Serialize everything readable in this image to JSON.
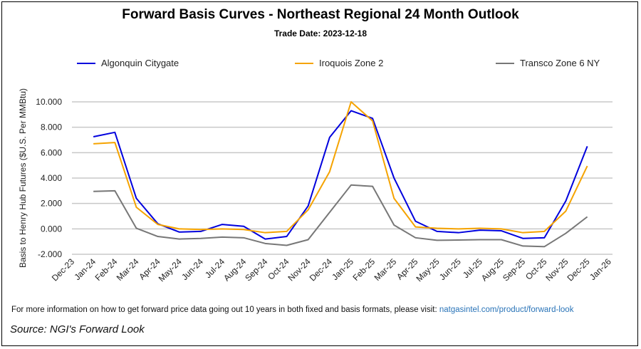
{
  "chart_data": {
    "type": "line",
    "title": "Forward Basis Curves - Northeast Regional 24 Month Outlook",
    "subtitle": "Trade Date: 2023-12-18",
    "ylabel": "Basis to Henry Hub Futures ($U.S. Per MMBtu)",
    "xlabel": "",
    "ylim": [
      -2,
      10
    ],
    "yticks": [
      "-2.000",
      "0.000",
      "2.000",
      "4.000",
      "6.000",
      "8.000",
      "10.000"
    ],
    "grid": true,
    "legend": "top",
    "xticks": [
      "Dec-23",
      "Jan-24",
      "Feb-24",
      "Mar-24",
      "Apr-24",
      "May-24",
      "Jun-24",
      "Jul-24",
      "Aug-24",
      "Sep-24",
      "Oct-24",
      "Nov-24",
      "Dec-24",
      "Jan-25",
      "Feb-25",
      "Mar-25",
      "Apr-25",
      "May-25",
      "Jun-25",
      "Jul-25",
      "Aug-25",
      "Sep-25",
      "Oct-25",
      "Nov-25",
      "Dec-25",
      "Jan-26"
    ],
    "x": [
      "Jan-24",
      "Feb-24",
      "Mar-24",
      "Apr-24",
      "May-24",
      "Jun-24",
      "Jul-24",
      "Aug-24",
      "Sep-24",
      "Oct-24",
      "Nov-24",
      "Dec-24",
      "Jan-25",
      "Feb-25",
      "Mar-25",
      "Apr-25",
      "May-25",
      "Jun-25",
      "Jul-25",
      "Aug-25",
      "Sep-25",
      "Oct-25",
      "Nov-25",
      "Dec-25"
    ],
    "series": [
      {
        "name": "Algonquin Citygate",
        "color": "#0000dd",
        "values": [
          7.25,
          7.6,
          2.4,
          0.4,
          -0.25,
          -0.2,
          0.35,
          0.2,
          -0.8,
          -0.6,
          1.8,
          7.2,
          9.3,
          8.7,
          4.0,
          0.6,
          -0.2,
          -0.3,
          -0.1,
          -0.15,
          -0.75,
          -0.7,
          2.2,
          6.5
        ]
      },
      {
        "name": "Iroquois Zone 2",
        "color": "#f5a300",
        "values": [
          6.7,
          6.8,
          1.7,
          0.35,
          0.0,
          -0.05,
          0.0,
          -0.05,
          -0.3,
          -0.2,
          1.5,
          4.5,
          10.0,
          8.5,
          2.4,
          0.15,
          0.05,
          0.0,
          0.05,
          0.0,
          -0.3,
          -0.2,
          1.4,
          4.95
        ]
      },
      {
        "name": "Transco Zone 6 NY",
        "color": "#777777",
        "values": [
          2.95,
          3.0,
          0.05,
          -0.6,
          -0.8,
          -0.75,
          -0.65,
          -0.7,
          -1.15,
          -1.3,
          -0.85,
          1.3,
          3.45,
          3.35,
          0.3,
          -0.7,
          -0.9,
          -0.88,
          -0.85,
          -0.85,
          -1.35,
          -1.4,
          -0.35,
          0.95
        ]
      }
    ]
  },
  "footer": {
    "text": "For more information on how to get forward price data going out 10 years in both fixed and basis formats, please visit: ",
    "link": "natgasintel.com/product/forward-look"
  },
  "source": "Source: NGI's Forward Look"
}
